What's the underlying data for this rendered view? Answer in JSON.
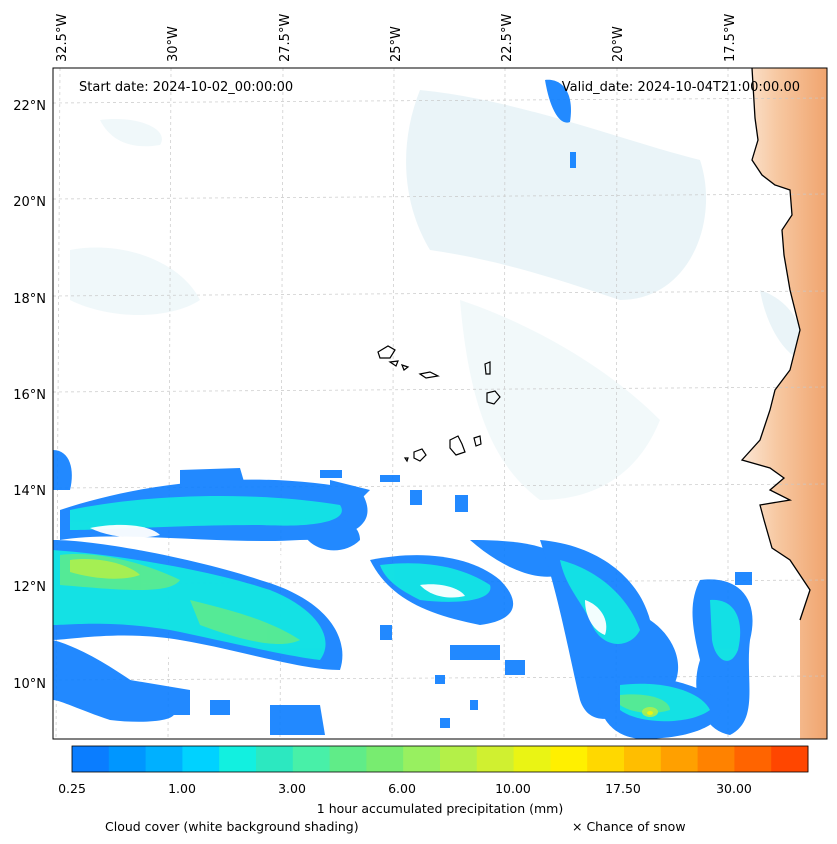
{
  "header": {
    "start_date": "Start date: 2024-10-02_00:00:00",
    "valid_date": "Valid_date: 2024-10-04T21:00:00.00"
  },
  "axes": {
    "lon_labels": [
      "32.5°W",
      "30°W",
      "27.5°W",
      "25°W",
      "22.5°W",
      "20°W",
      "17.5°W"
    ],
    "lat_labels": [
      "22°N",
      "20°N",
      "18°N",
      "16°N",
      "14°N",
      "12°N",
      "10°N"
    ]
  },
  "colorbar": {
    "tick_labels": [
      "0.25",
      "1.00",
      "3.00",
      "6.00",
      "10.00",
      "17.50",
      "30.00"
    ],
    "label": "1 hour accumulated precipitation (mm)",
    "colors": [
      "#0a7dff",
      "#0096ff",
      "#00b0ff",
      "#00d2ff",
      "#12f0e0",
      "#2ce8c0",
      "#48f0a8",
      "#60ec88",
      "#78ec70",
      "#98f060",
      "#b4f048",
      "#d0f030",
      "#eaf414",
      "#fff000",
      "#ffd800",
      "#ffbe00",
      "#ffa000",
      "#ff8200",
      "#ff6400",
      "#ff4600"
    ]
  },
  "footer": {
    "cloud_note": "Cloud cover (white background shading)",
    "snow_note": "× Chance of snow"
  }
}
